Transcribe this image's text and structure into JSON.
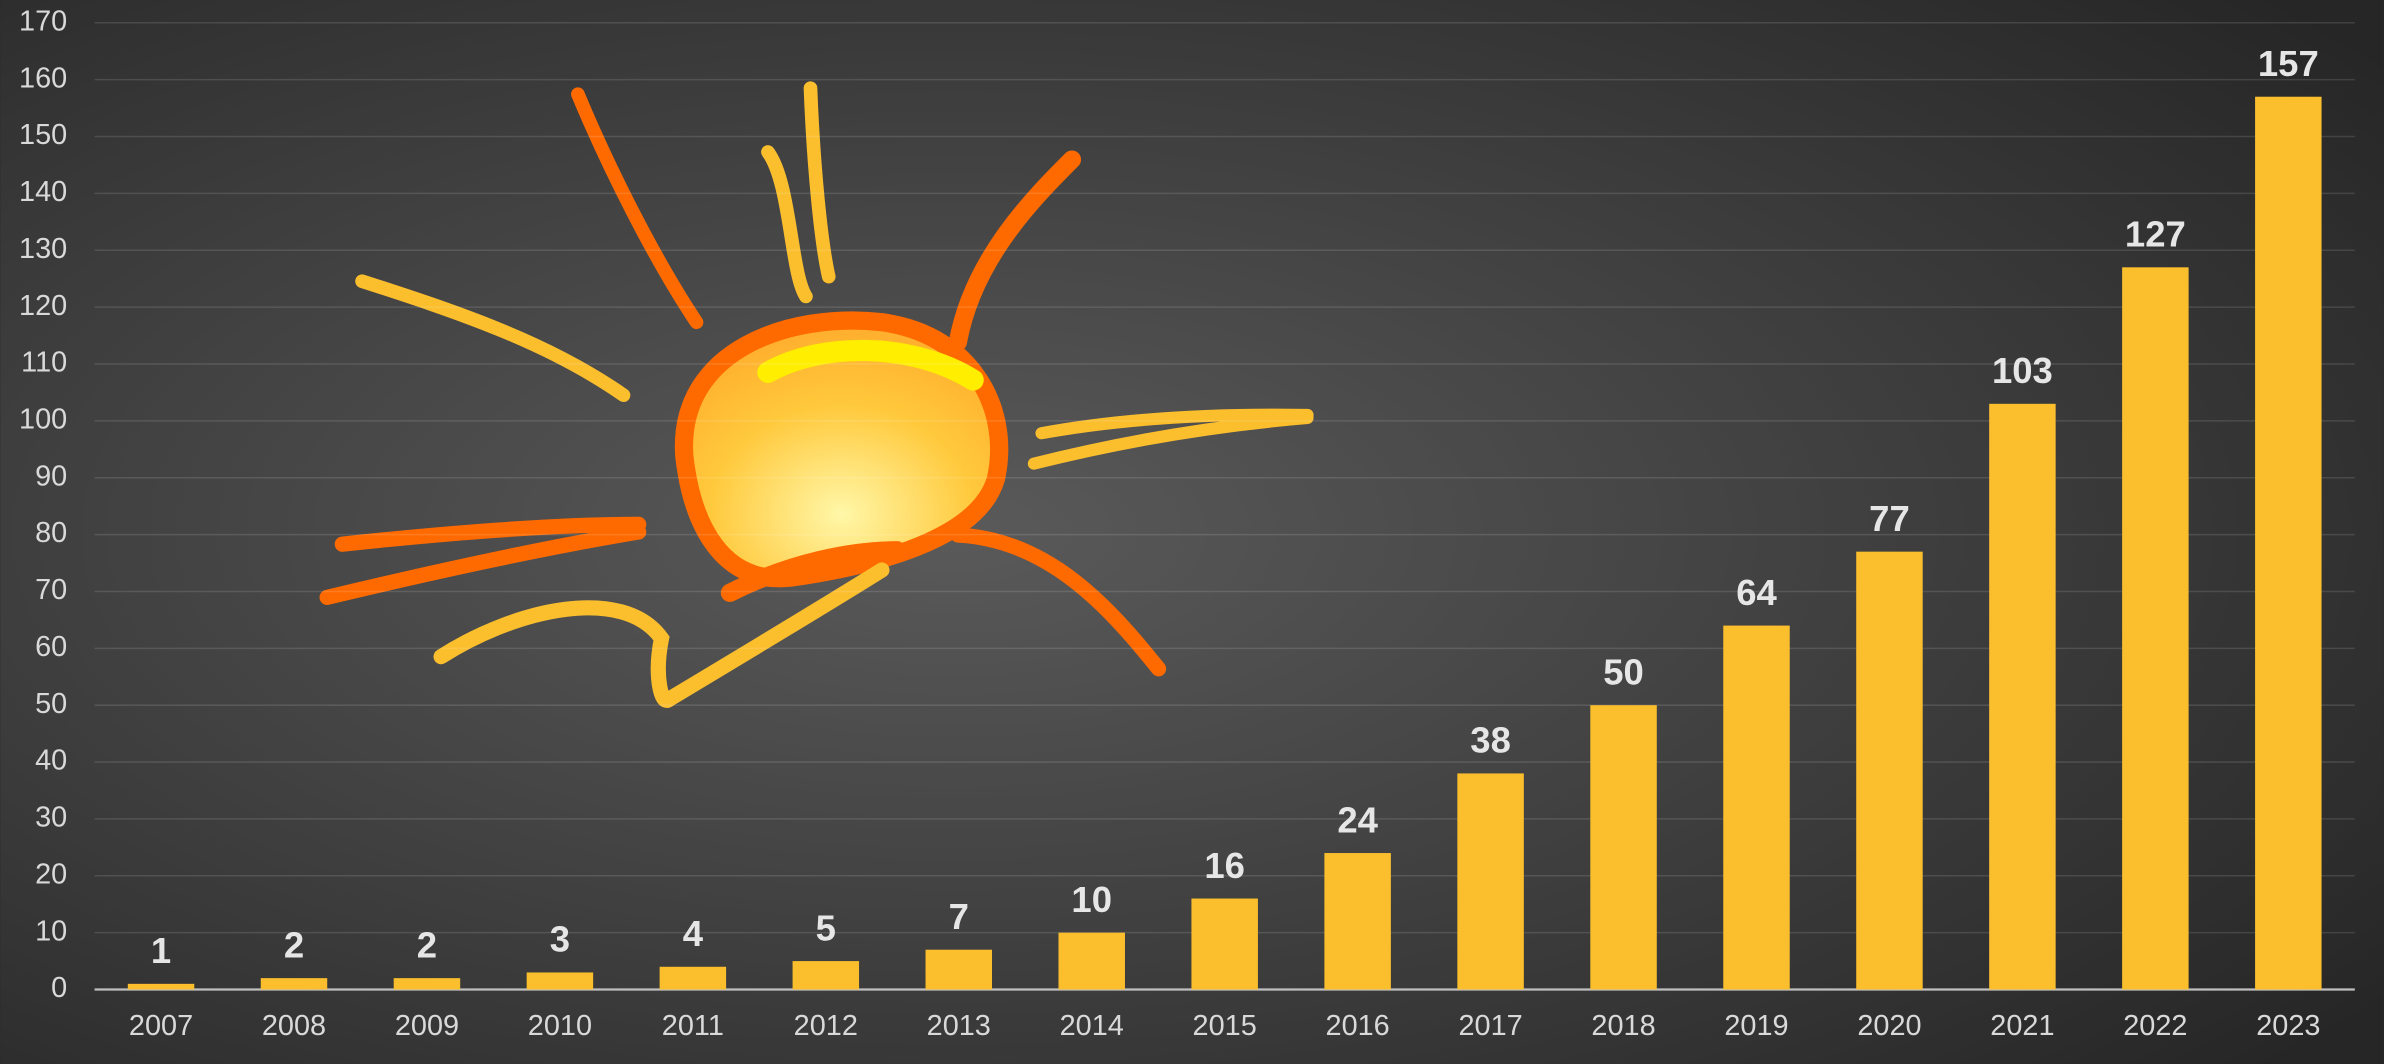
{
  "chart_data": {
    "type": "bar",
    "categories": [
      "2007",
      "2008",
      "2009",
      "2010",
      "2011",
      "2012",
      "2013",
      "2014",
      "2015",
      "2016",
      "2017",
      "2018",
      "2019",
      "2020",
      "2021",
      "2022",
      "2023"
    ],
    "values": [
      1,
      2,
      2,
      3,
      4,
      5,
      7,
      10,
      16,
      24,
      38,
      50,
      64,
      77,
      103,
      127,
      157
    ],
    "color": "#fbbf2e",
    "ylim": [
      0,
      170
    ],
    "yticks": [
      0,
      10,
      20,
      30,
      40,
      50,
      60,
      70,
      80,
      90,
      100,
      110,
      120,
      130,
      140,
      150,
      160,
      170
    ],
    "grid": true
  }
}
